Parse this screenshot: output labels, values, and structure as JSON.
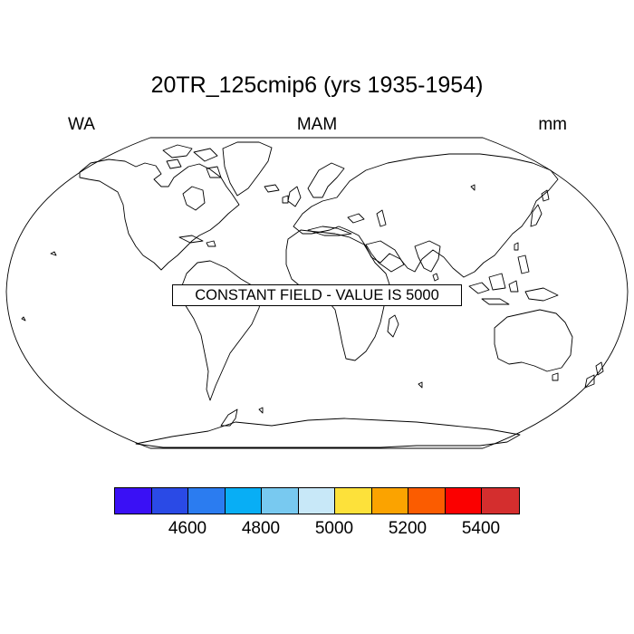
{
  "title": "20TR_125cmip6 (yrs 1935-1954)",
  "subtitle_left": "WA",
  "subtitle_center": "MAM",
  "subtitle_right": "mm",
  "message": "CONSTANT FIELD - VALUE IS 5000",
  "colorbar": {
    "colors": [
      "#3a10f5",
      "#2a4ae6",
      "#2b7cf0",
      "#08aef5",
      "#78c9f0",
      "#c8e8f8",
      "#fde13a",
      "#fba300",
      "#fb5c00",
      "#fb0000",
      "#d42e2e"
    ],
    "tick_labels": [
      "4600",
      "4800",
      "5000",
      "5200",
      "5400"
    ]
  }
}
